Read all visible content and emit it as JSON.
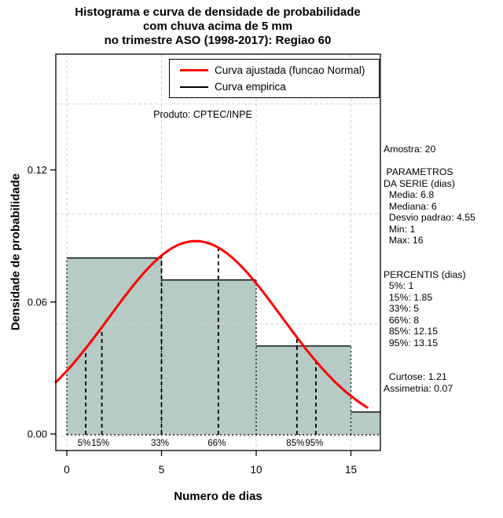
{
  "title_lines": [
    "Histograma e curva de densidade de probabilidade",
    "com chuva acima de 5 mm",
    "no trimestre ASO (1998-2017): Regiao 60"
  ],
  "legend": {
    "items": [
      {
        "label": "Curva ajustada (funcao Normal)",
        "color": "#ff0000",
        "thickness": 3,
        "icon": "fitted-curve-line-icon"
      },
      {
        "label": "Curva empirica",
        "color": "#000000",
        "thickness": 2,
        "icon": "empirical-curve-line-icon"
      }
    ]
  },
  "annotations": {
    "product": "Produto: CPTEC/INPE"
  },
  "side_panel": {
    "lines": [
      "Amostra: 20",
      "",
      " PARAMETROS",
      "DA SERIE (dias)",
      "  Media: 6.8",
      "  Mediana: 6",
      "  Desvio padrao: 4.55",
      "  Min: 1",
      "  Max: 16",
      "",
      "",
      "PERCENTIS (dias)",
      "  5%: 1",
      "  15%: 1.85",
      "  33%: 5",
      "  66%: 8",
      "  85%: 12.15",
      "  95%: 13.15",
      "",
      "",
      "  Curtose: 1.21",
      "Assimetria: 0.07"
    ]
  },
  "chart_data": {
    "type": "histogram+density",
    "title": "Histograma e curva de densidade de probabilidade com chuva acima de 5 mm no trimestre ASO (1998-2017): Regiao 60",
    "xlabel": "Numero de dias",
    "ylabel": "Densidade de probabilidade",
    "x_ticks": [
      0,
      5,
      10,
      15
    ],
    "y_tick_labels": [
      "0.00",
      "0.06",
      "0.12"
    ],
    "xlim": [
      -0.58,
      16.56
    ],
    "ylim": [
      0,
      0.1726
    ],
    "curve_x_range": [
      -0.58,
      15.9
    ],
    "grid": {
      "x_values": [
        0,
        5,
        10,
        15
      ],
      "y_values": [
        0.05,
        0.1,
        0.15
      ]
    },
    "histogram": {
      "bin_edges": [
        0,
        5,
        10,
        15,
        20
      ],
      "densities": [
        0.08,
        0.07,
        0.04,
        0.01
      ]
    },
    "fitted_normal": {
      "mean": 6.8,
      "sd": 4.55
    },
    "percentiles": [
      {
        "label": "5%",
        "x": 1
      },
      {
        "label": "15%",
        "x": 1.85
      },
      {
        "label": "33%",
        "x": 5
      },
      {
        "label": "66%",
        "x": 8
      },
      {
        "label": "85%",
        "x": 12.15
      },
      {
        "label": "95%",
        "x": 13.15
      }
    ],
    "stats": {
      "amostra": 20,
      "media": 6.8,
      "mediana": 6,
      "desvio_padrao": 4.55,
      "min": 1,
      "max": 16,
      "curtose": 1.21,
      "assimetria": 0.07,
      "percentis": {
        "5%": 1,
        "15%": 1.85,
        "33%": 5,
        "66%": 8,
        "85%": 12.15,
        "95%": 13.15
      }
    },
    "colors": {
      "bar_fill": "#b6cac6",
      "fitted_curve": "#ff0000",
      "empirical": "#000000",
      "grid": "#d2d2d2",
      "background": "#ffffff"
    }
  }
}
